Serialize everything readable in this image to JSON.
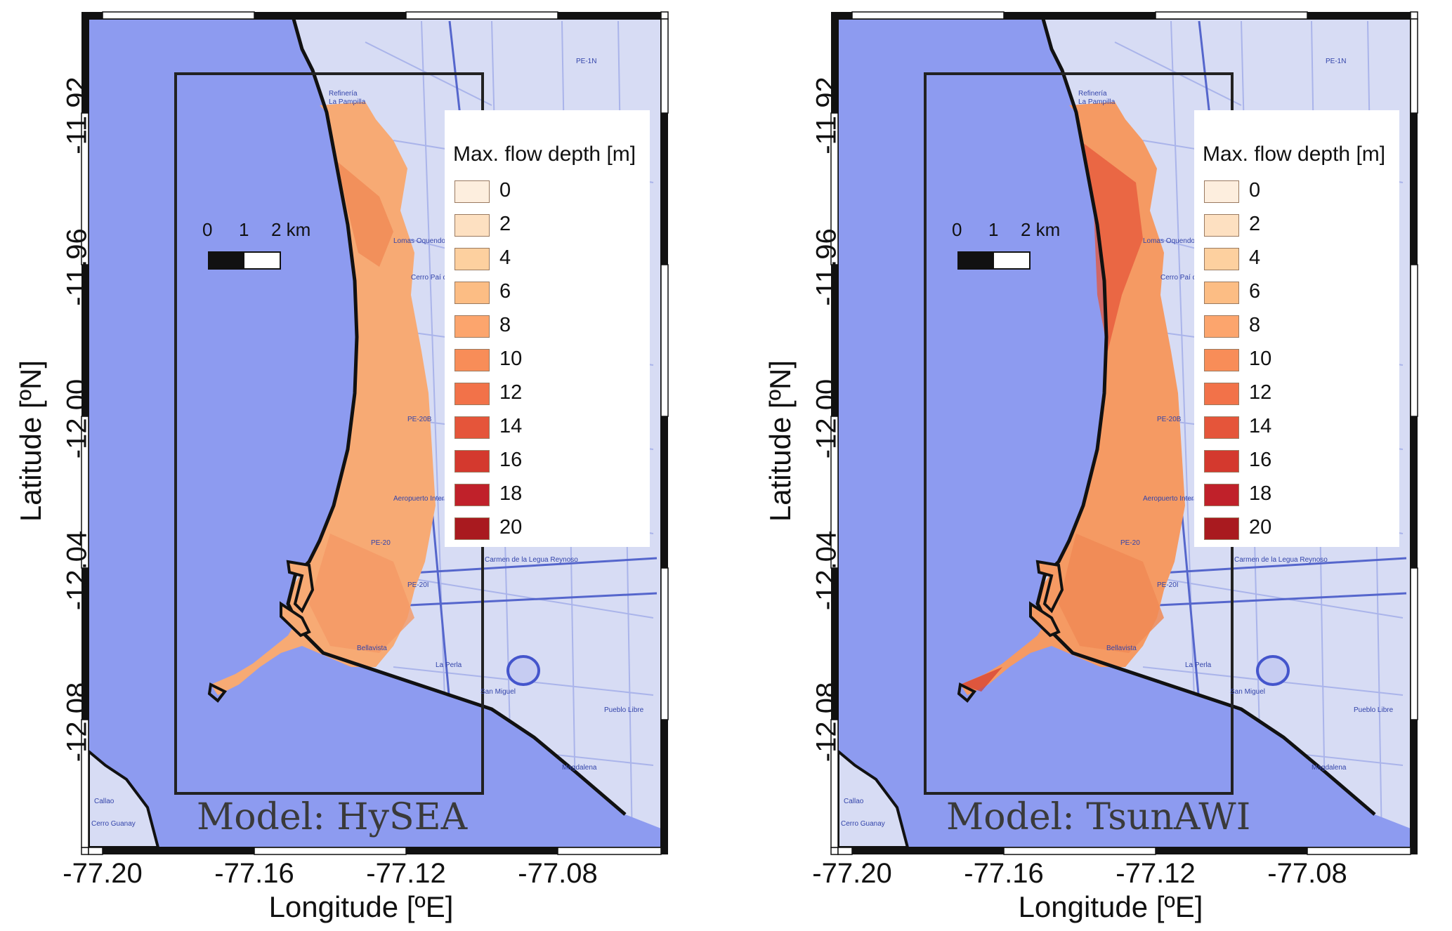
{
  "figure": {
    "panels": [
      {
        "model_title": "Model: HySEA",
        "ylabel": "Latitude [ºN]",
        "xlabel": "Longitude [ºE]",
        "yticks": [
          "-11.92",
          "-11.96",
          "-12.00",
          "-12.04",
          "-12.08"
        ],
        "xticks": [
          "-77.20",
          "-77.16",
          "-77.12",
          "-77.08"
        ],
        "legend_title": "Max. flow depth [m]",
        "legend_items": [
          "0",
          "2",
          "4",
          "6",
          "8",
          "10",
          "12",
          "14",
          "16",
          "18",
          "20"
        ],
        "scalebar": {
          "l0": "0",
          "l1": "1",
          "l2": "2 km"
        },
        "places": {
          "refineria": "Refinería",
          "lapampilla": "La Pampilla",
          "pe1n": "PE-1N",
          "lomas": "Lomas Oquendo",
          "cerro": "Cerro Paí de Azúcar",
          "pe20b": "PE-20B",
          "aeropuerto": "Aeropuerto Internacional Jorge Chávez",
          "pe20": "PE-20",
          "carmen": "Carmen de la Legua Reynoso",
          "pe20i": "PE-20I",
          "bellavista": "Bellavista",
          "laperla": "La Perla",
          "sanmiguel": "San Miguel",
          "pueblolibre": "Pueblo Libre",
          "magdalena": "Magdalena",
          "callao": "Callao",
          "cerroguanay": "Cerro Guanay"
        }
      },
      {
        "model_title": "Model: TsunAWI",
        "ylabel": "Latitude [ºN]",
        "xlabel": "Longitude [ºE]",
        "yticks": [
          "-11.92",
          "-11.96",
          "-12.00",
          "-12.04",
          "-12.08"
        ],
        "xticks": [
          "-77.20",
          "-77.16",
          "-77.12",
          "-77.08"
        ],
        "legend_title": "Max. flow depth [m]",
        "legend_items": [
          "0",
          "2",
          "4",
          "6",
          "8",
          "10",
          "12",
          "14",
          "16",
          "18",
          "20"
        ],
        "scalebar": {
          "l0": "0",
          "l1": "1",
          "l2": "2 km"
        },
        "places": {
          "refineria": "Refinería",
          "lapampilla": "La Pampilla",
          "pe1n": "PE-1N",
          "lomas": "Lomas Oquendo",
          "cerro": "Cerro Paí de Azúcar",
          "pe20b": "PE-20B",
          "aeropuerto": "Aeropuerto Internacional Jorge Chávez",
          "pe20": "PE-20",
          "carmen": "Carmen de la Legua Reynoso",
          "pe20i": "PE-20I",
          "bellavista": "Bellavista",
          "laperla": "La Perla",
          "sanmiguel": "San Miguel",
          "pueblolibre": "Pueblo Libre",
          "magdalena": "Magdalena",
          "callao": "Callao",
          "cerroguanay": "Cerro Guanay"
        }
      }
    ]
  },
  "colors": {
    "sea": "#8d9bf0",
    "land": "#d7dcf4",
    "legend": [
      "#fdeede",
      "#fde0c1",
      "#fdd09f",
      "#fcbd84",
      "#fca56d",
      "#f88d58",
      "#f27249",
      "#e5553a",
      "#d4392e",
      "#c0212a",
      "#a91a1f"
    ]
  }
}
